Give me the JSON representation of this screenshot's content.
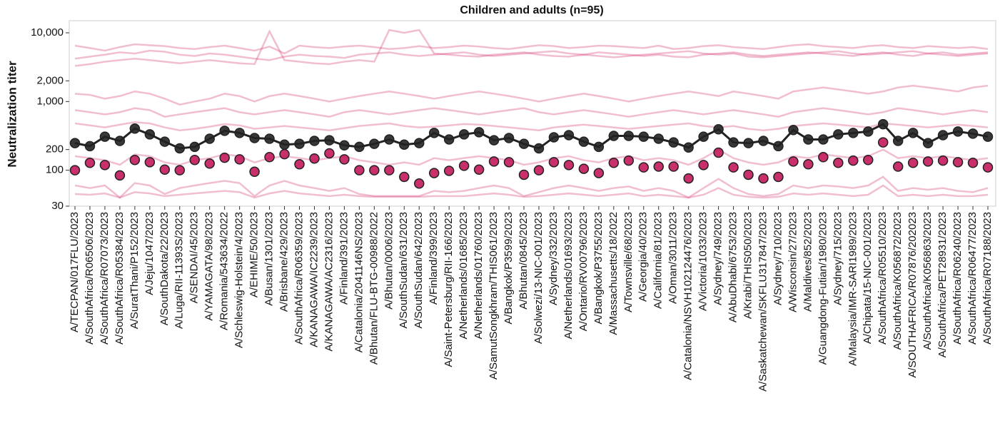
{
  "chart_data": {
    "type": "line",
    "title": "Children and adults (n=95)",
    "y_label": "Neutralization titer",
    "log_y": true,
    "ylim": [
      30,
      15000
    ],
    "yticks": [
      30,
      100,
      200,
      {
        "value": 1000,
        "label": "1,000"
      },
      {
        "value": 2000,
        "label": "2,000"
      },
      {
        "value": 10000,
        "label": "10,000"
      }
    ],
    "categories": [
      "A/TECPAN/017FLU/2023",
      "A/SouthAfrica/R06506/2023",
      "A/SouthAfrica/R07073/2023",
      "A/SouthAfrica/R05384/2023",
      "A/SuratThani/P152/2023",
      "A/Jeju/1047/2023",
      "A/SouthDakota/22/2023",
      "A/Luga/RII-11393S/2023",
      "A/SENDAI/45/2023",
      "A/YAMAGATA/98/2023",
      "A/Romania/543634/2022",
      "A/Schleswig-Holstein/4/2023",
      "A/EHIME/50/2023",
      "A/Busan/1301/2023",
      "A/Brisbane/429/2023",
      "A/SouthAfrica/R06359/2023",
      "A/KANAGAWA/IC2239/2023",
      "A/KANAGAWA/AC2316/2023",
      "A/Finland/391/2023",
      "A/Catalonia/2041146NS/2023",
      "A/Bhutan/FLU-BTG-00988/2022",
      "A/Bhutan/0006/2023",
      "A/SouthSudan/631/2023",
      "A/SouthSudan/642/2023",
      "A/Finland/399/2023",
      "A/Saint-Petersburg/RII-166/2023",
      "A/Netherlands/01685/2023",
      "A/Netherlands/01760/2023",
      "A/SamutSongkhram/THIS061/2023",
      "A/Bangkok/P3599/2023",
      "A/Bhutan/0845/2023",
      "A/Solwezi/13-NIC-001/2023",
      "A/Sydney/332/2023",
      "A/Netherlands/01693/2023",
      "A/Ontario/RV00796/2023",
      "A/Bangkok/P3755/2023",
      "A/Massachusetts/18/2022",
      "A/Townsville/68/2023",
      "A/Georgia/40/2023",
      "A/California/81/2023",
      "A/Oman/3011/2023",
      "A/Catalonia/NSVH102124476/2023",
      "A/Victoria/1033/2023",
      "A/Sydney/749/2023",
      "A/AbuDhabi/6753/2023",
      "A/Krabi/THIS050/2023",
      "A/Saskatchewan/SKFLU317847/2023",
      "A/Sydney/710/2023",
      "A/Wisconsin/27/2023",
      "A/Maldives/852/2023",
      "A/Guangdong-Futian/1980/2023",
      "A/Sydney/715/2023",
      "A/Malaysia/IMR-SARI1989/2023",
      "A/Chipata/15-NIC-001/2023",
      "A/SouthAfrica/R05510/2023",
      "A/SouthAfrica/K056872/2023",
      "A/SOUTHAFRICA/R07876/202023",
      "A/SouthAfrica/K056863/2023",
      "A/SouthAfrica/PET28931/2023",
      "A/SouthAfrica/R06240/2023",
      "A/SouthAfrica/R06477/2023",
      "A/SouthAfrica/R07188/2023"
    ],
    "series": [
      {
        "color": "#d8437a",
        "opacity": 0.35,
        "line": true,
        "markers": false,
        "values": [
          6500,
          6000,
          5500,
          6200,
          6800,
          6600,
          6400,
          6000,
          5800,
          6200,
          6500,
          6000,
          5500,
          6300,
          5000,
          6500,
          6200,
          6000,
          6300,
          6500,
          6200,
          5800,
          6000,
          6400,
          6000,
          6200,
          6500,
          6300,
          6000,
          5800,
          6200,
          6600,
          6400,
          6000,
          6200,
          6500,
          6400,
          6200,
          6000,
          6500,
          5800,
          6000,
          6400,
          6600,
          6200,
          6000,
          5800,
          6200,
          6600,
          6800,
          6400,
          6200,
          6000,
          6400,
          6600,
          6200,
          6000,
          6400,
          6200,
          6000,
          6200,
          5800
        ]
      },
      {
        "color": "#d8437a",
        "opacity": 0.35,
        "line": true,
        "markers": false,
        "values": [
          4200,
          4500,
          4800,
          5200,
          5000,
          5500,
          5300,
          4800,
          4600,
          5000,
          4800,
          4500,
          4200,
          4000,
          4500,
          4800,
          4600,
          4500,
          4300,
          4800,
          5000,
          5200,
          4800,
          4600,
          4800,
          5000,
          5200,
          4800,
          4600,
          4800,
          5000,
          5200,
          5400,
          5000,
          4800,
          5200,
          5000,
          4800,
          4600,
          4800,
          4500,
          4400,
          4800,
          5000,
          5200,
          4800,
          4600,
          4800,
          5000,
          5200,
          5000,
          4800,
          4600,
          5000,
          5200,
          4800,
          4600,
          5000,
          5200,
          4800,
          5000,
          5200
        ]
      },
      {
        "color": "#d8437a",
        "opacity": 0.35,
        "line": true,
        "markers": false,
        "values": [
          3300,
          3500,
          3800,
          4000,
          4200,
          4000,
          3800,
          3600,
          3800,
          4000,
          3800,
          3600,
          3500,
          10500,
          4000,
          3800,
          3600,
          3500,
          3800,
          4000,
          3800,
          11000,
          10000,
          11000,
          5000,
          4800,
          4600,
          4500,
          4800,
          5000,
          5200,
          4800,
          4600,
          4500,
          4800,
          4600,
          4400,
          4600,
          4800,
          5000,
          5200,
          5400,
          5000,
          4800,
          5000,
          4500,
          4400,
          4600,
          4800,
          5000,
          5200,
          5400,
          5000,
          4800,
          5000,
          5200,
          5400,
          5000,
          4800,
          4600,
          4800,
          5000
        ]
      },
      {
        "color": "#d8437a",
        "opacity": 0.35,
        "line": true,
        "markers": false,
        "values": [
          1300,
          1250,
          1100,
          1200,
          1400,
          1300,
          1100,
          900,
          1000,
          1100,
          1300,
          1200,
          1000,
          1200,
          1300,
          1200,
          1100,
          1000,
          1100,
          1200,
          1300,
          1400,
          1300,
          1200,
          1100,
          1200,
          1300,
          1400,
          1300,
          1200,
          1100,
          1000,
          1100,
          1200,
          1300,
          1200,
          1100,
          1000,
          1100,
          1200,
          1300,
          1400,
          1300,
          1200,
          1400,
          1300,
          1200,
          1100,
          1400,
          1500,
          1600,
          1500,
          1400,
          1300,
          1400,
          1600,
          1700,
          1600,
          1500,
          1400,
          1600,
          1700
        ]
      },
      {
        "color": "#d8437a",
        "opacity": 0.35,
        "line": true,
        "markers": false,
        "values": [
          750,
          700,
          650,
          700,
          800,
          750,
          600,
          650,
          700,
          750,
          800,
          700,
          650,
          700,
          750,
          700,
          650,
          600,
          700,
          750,
          700,
          650,
          700,
          750,
          800,
          750,
          700,
          650,
          700,
          750,
          800,
          700,
          650,
          700,
          750,
          700,
          650,
          600,
          650,
          700,
          750,
          700,
          650,
          700,
          750,
          700,
          650,
          600,
          700,
          750,
          800,
          750,
          700,
          650,
          700,
          800,
          750,
          700,
          650,
          700,
          750,
          700
        ]
      },
      {
        "color": "#d8437a",
        "opacity": 0.35,
        "line": true,
        "markers": false,
        "values": [
          480,
          450,
          420,
          460,
          500,
          480,
          420,
          380,
          400,
          430,
          470,
          450,
          400,
          420,
          440,
          420,
          400,
          380,
          410,
          440,
          460,
          480,
          440,
          420,
          430,
          450,
          470,
          460,
          440,
          420,
          400,
          380,
          420,
          440,
          460,
          440,
          420,
          400,
          420,
          440,
          460,
          480,
          440,
          420,
          440,
          400,
          380,
          400,
          440,
          460,
          480,
          460,
          440,
          420,
          480,
          460,
          440,
          420,
          440,
          460,
          440,
          420
        ]
      },
      {
        "color": "#d8437a",
        "opacity": 0.35,
        "line": true,
        "markers": false,
        "values": [
          160,
          150,
          140,
          120,
          170,
          160,
          130,
          120,
          140,
          150,
          170,
          160,
          130,
          150,
          160,
          150,
          140,
          150,
          160,
          140,
          130,
          120,
          130,
          120,
          150,
          140,
          150,
          160,
          150,
          140,
          120,
          130,
          150,
          160,
          140,
          130,
          150,
          160,
          140,
          150,
          140,
          120,
          150,
          200,
          150,
          130,
          120,
          130,
          160,
          150,
          170,
          160,
          150,
          160,
          200,
          150,
          160,
          150,
          160,
          150,
          140,
          150
        ]
      },
      {
        "color": "#d8437a",
        "opacity": 0.35,
        "line": true,
        "markers": false,
        "values": [
          60,
          55,
          60,
          40,
          65,
          60,
          45,
          55,
          60,
          65,
          70,
          65,
          42,
          60,
          70,
          60,
          55,
          50,
          55,
          45,
          42,
          42,
          42,
          42,
          50,
          48,
          50,
          55,
          60,
          55,
          42,
          48,
          55,
          60,
          55,
          50,
          55,
          58,
          50,
          55,
          50,
          40,
          55,
          75,
          55,
          45,
          42,
          45,
          60,
          55,
          60,
          58,
          55,
          60,
          80,
          50,
          55,
          52,
          55,
          50,
          48,
          55
        ]
      },
      {
        "color": "#d8437a",
        "opacity": 0.35,
        "line": true,
        "markers": false,
        "values": [
          45,
          44,
          46,
          40,
          48,
          46,
          42,
          44,
          46,
          48,
          50,
          48,
          40,
          46,
          50,
          46,
          44,
          42,
          44,
          42,
          41,
          41,
          41,
          41,
          42,
          42,
          42,
          44,
          46,
          44,
          41,
          42,
          44,
          46,
          44,
          42,
          44,
          46,
          42,
          44,
          42,
          40,
          44,
          55,
          44,
          41,
          40,
          41,
          46,
          44,
          46,
          44,
          42,
          44,
          60,
          42,
          44,
          42,
          44,
          42,
          42,
          44
        ]
      },
      {
        "color": "#222222",
        "opacity": 1,
        "line": true,
        "markers": true,
        "values": [
          248,
          224,
          308,
          267,
          404,
          332,
          260,
          208,
          219,
          287,
          375,
          349,
          294,
          287,
          236,
          242,
          267,
          273,
          230,
          219,
          242,
          280,
          236,
          248,
          349,
          280,
          332,
          357,
          273,
          294,
          242,
          208,
          301,
          324,
          260,
          219,
          316,
          316,
          308,
          287,
          254,
          214,
          308,
          394,
          254,
          248,
          267,
          224,
          385,
          280,
          280,
          332,
          349,
          366,
          468,
          267,
          349,
          248,
          324,
          366,
          340,
          308
        ]
      },
      {
        "color": "#c2185b",
        "opacity": 1,
        "line": false,
        "markers": true,
        "values": [
          100,
          128,
          119,
          84,
          141,
          131,
          102,
          100,
          141,
          125,
          152,
          144,
          95,
          155,
          171,
          122,
          148,
          176,
          144,
          100,
          100,
          100,
          80,
          64,
          91,
          98,
          116,
          102,
          134,
          131,
          86,
          100,
          131,
          119,
          105,
          91,
          128,
          138,
          110,
          113,
          113,
          76,
          119,
          180,
          110,
          86,
          76,
          80,
          134,
          122,
          155,
          128,
          138,
          141,
          254,
          113,
          128,
          134,
          138,
          131,
          128,
          110
        ]
      }
    ]
  }
}
